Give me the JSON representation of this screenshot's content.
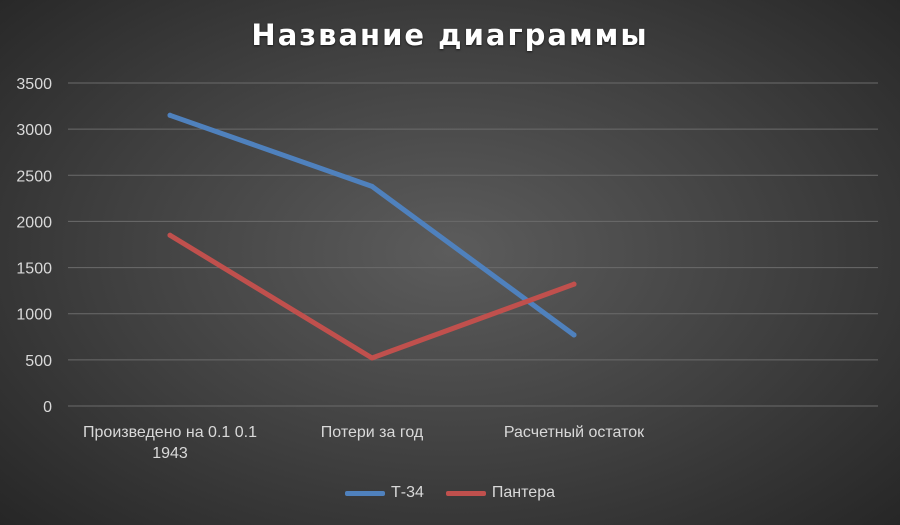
{
  "chart_data": {
    "type": "line",
    "title": "Название диаграммы",
    "categories": [
      "Произведено на 0.1 0.1 1943",
      "Потери за год",
      "Расчетный остаток"
    ],
    "series": [
      {
        "name": "Т-34",
        "values": [
          3150,
          2380,
          770
        ],
        "color": "#4f81bd"
      },
      {
        "name": "Пантера",
        "values": [
          1850,
          520,
          1320
        ],
        "color": "#c0504d"
      }
    ],
    "ylim": [
      0,
      3500
    ],
    "yticks": [
      0,
      500,
      1000,
      1500,
      2000,
      2500,
      3000,
      3500
    ],
    "grid": true,
    "legend_position": "bottom",
    "xlabel": "",
    "ylabel": ""
  }
}
